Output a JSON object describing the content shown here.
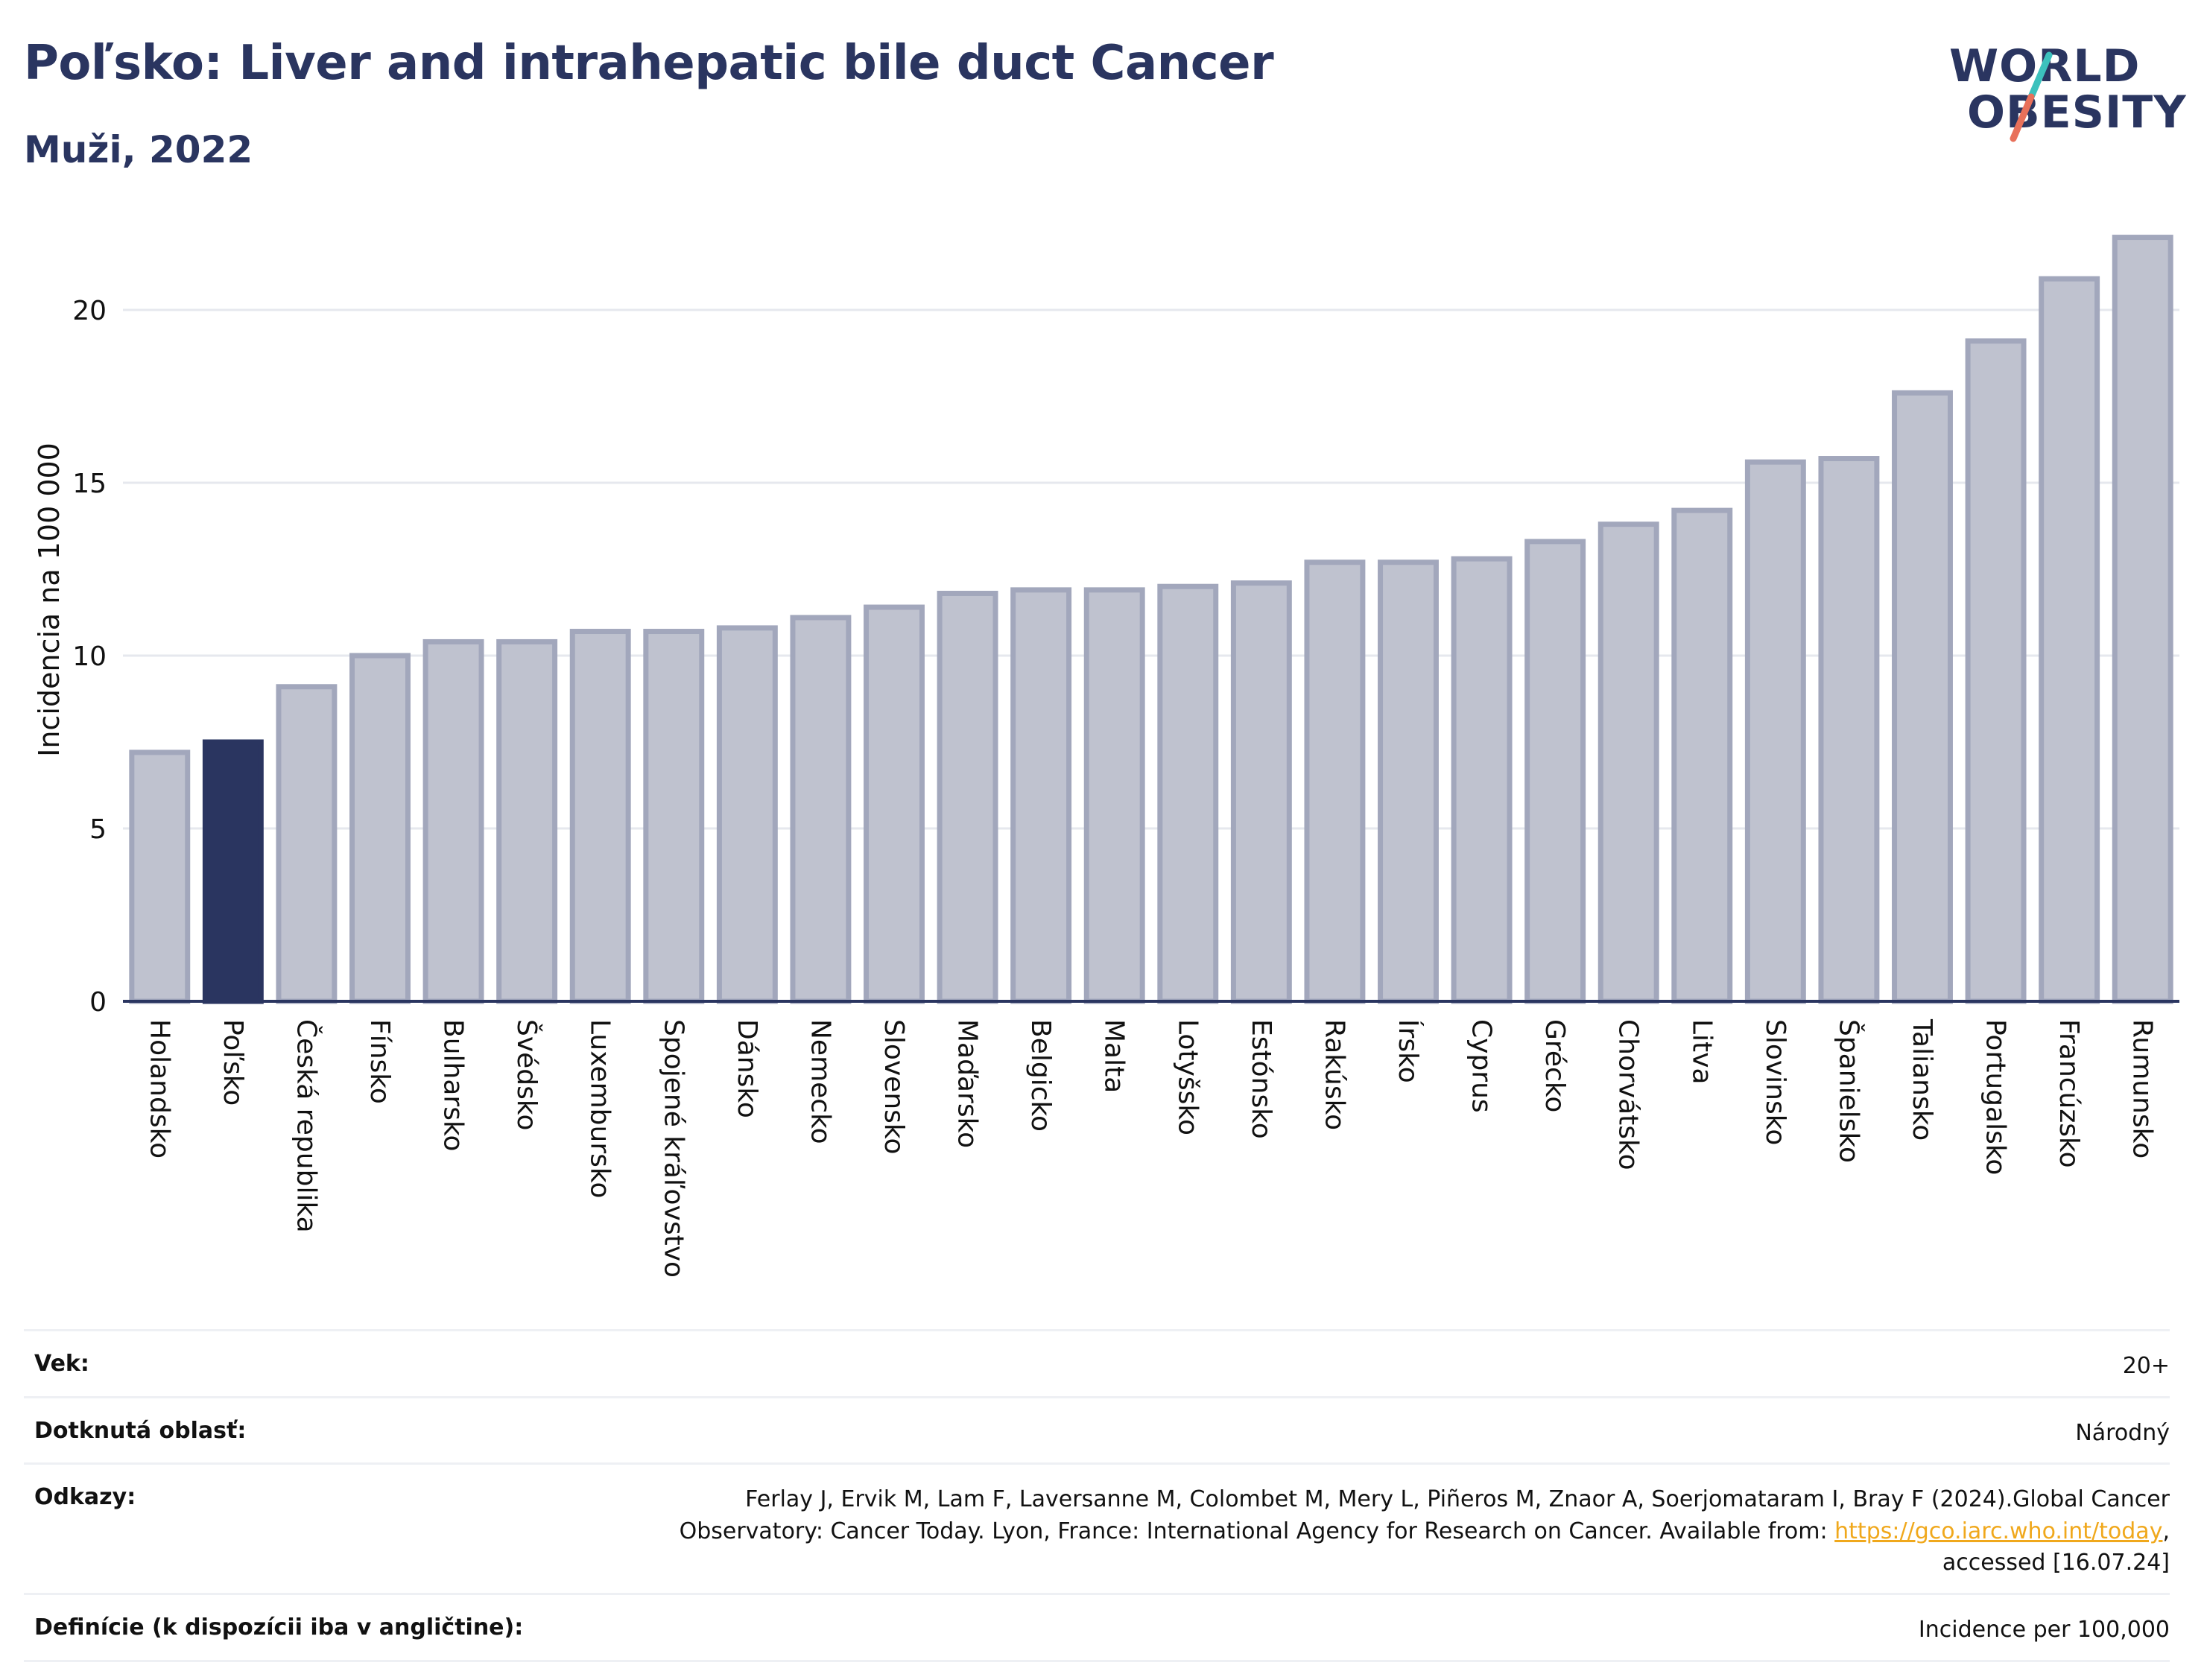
{
  "header": {
    "title": "Poľsko: Liver and intrahepatic bile duct Cancer",
    "subtitle": "Muži, 2022"
  },
  "logo": {
    "line1": "WORLD",
    "line2": "OBESITY",
    "stroke_colors": [
      "#3cc1bd",
      "#e8705a"
    ]
  },
  "chart_data": {
    "type": "bar",
    "categories": [
      "Holandsko",
      "Poľsko",
      "Česká republika",
      "Fínsko",
      "Bulharsko",
      "Švédsko",
      "Luxembursko",
      "Spojené kráľovstvo",
      "Dánsko",
      "Nemecko",
      "Slovensko",
      "Maďarsko",
      "Belgicko",
      "Malta",
      "Lotyšsko",
      "Estónsko",
      "Rakúsko",
      "Írsko",
      "Cyprus",
      "Grécko",
      "Chorvátsko",
      "Litva",
      "Slovinsko",
      "Španielsko",
      "Taliansko",
      "Portugalsko",
      "Francúzsko",
      "Rumunsko"
    ],
    "values": [
      7.2,
      7.5,
      9.1,
      10.0,
      10.4,
      10.4,
      10.7,
      10.7,
      10.8,
      11.1,
      11.4,
      11.8,
      11.9,
      11.9,
      12.0,
      12.1,
      12.7,
      12.7,
      12.8,
      13.3,
      13.8,
      14.2,
      15.6,
      15.7,
      17.6,
      19.1,
      20.9,
      22.1
    ],
    "highlight": "Poľsko",
    "ylabel": "Incidencia na 100 000",
    "xlabel": "",
    "yticks": [
      0,
      5,
      10,
      15,
      20
    ],
    "ylim": [
      0,
      22.5
    ],
    "grid": true,
    "colors": {
      "bar": "#bfc2cf",
      "bar_edge": "#a2a7bc",
      "highlight": "#2a3560",
      "axis": "#2a3560",
      "grid": "#e6e8ee"
    }
  },
  "meta": {
    "age_label": "Vek:",
    "age_value": "20+",
    "area_label": "Dotknutá oblasť:",
    "area_value": "Národný",
    "refs_label": "Odkazy:",
    "refs_text_1": "Ferlay J, Ervik M, Lam F, Laversanne M, Colombet M, Mery L, Piñeros M, Znaor A, Soerjomataram I, Bray F (2024).Global Cancer Observatory: Cancer Today. Lyon, France: International Agency for Research on Cancer. Available from: ",
    "refs_link": "https://gco.iarc.who.int/today",
    "refs_text_2": ", accessed [16.07.24]",
    "def_label": "Definície (k dispozícii iba v angličtine):",
    "def_value": "Incidence per 100,000"
  }
}
